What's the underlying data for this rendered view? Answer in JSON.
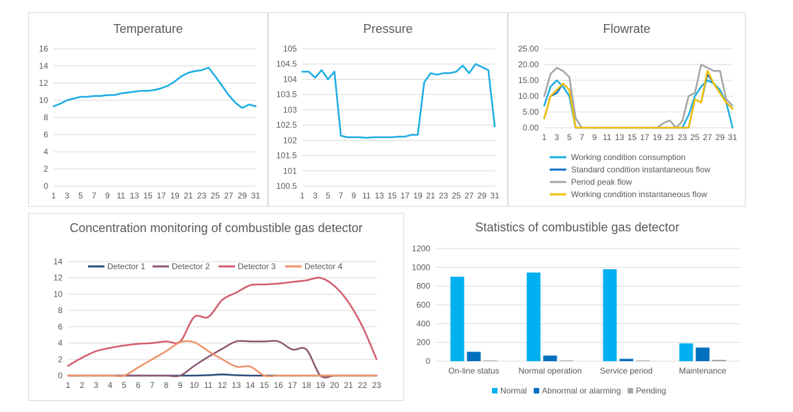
{
  "colors": {
    "blue": "#1cade4",
    "darkblue": "#0f6fc6",
    "gray": "#a5a5a5",
    "yellow": "#f4c000",
    "det1": "#2c4f7a",
    "det2": "#8e5875",
    "det3": "#d25d6e",
    "det4": "#ee9368",
    "barNormal": "#00b0f0",
    "barAbnormal": "#0070c0",
    "barPending": "#a6a6a6"
  },
  "chart_data": [
    {
      "type": "line",
      "title": "Temperature",
      "x": [
        1,
        2,
        3,
        4,
        5,
        6,
        7,
        8,
        9,
        10,
        11,
        12,
        13,
        14,
        15,
        16,
        17,
        18,
        19,
        20,
        21,
        22,
        23,
        24,
        25,
        26,
        27,
        28,
        29,
        30,
        31
      ],
      "x_tick_labels": [
        "1",
        "3",
        "5",
        "7",
        "9",
        "11",
        "13",
        "15",
        "17",
        "19",
        "21",
        "23",
        "25",
        "27",
        "29",
        "31"
      ],
      "ylim": [
        0,
        16
      ],
      "y_ticks": [
        "0",
        "2",
        "4",
        "6",
        "8",
        "10",
        "12",
        "14",
        "16"
      ],
      "series": [
        {
          "values": [
            9.3,
            9.6,
            10.0,
            10.2,
            10.4,
            10.4,
            10.5,
            10.5,
            10.6,
            10.6,
            10.8,
            10.9,
            11.0,
            11.1,
            11.1,
            11.2,
            11.4,
            11.7,
            12.2,
            12.8,
            13.2,
            13.4,
            13.5,
            13.8,
            12.8,
            11.7,
            10.6,
            9.7,
            9.1,
            9.5,
            9.3
          ]
        }
      ]
    },
    {
      "type": "line",
      "title": "Pressure",
      "x": [
        1,
        2,
        3,
        4,
        5,
        6,
        7,
        8,
        9,
        10,
        11,
        12,
        13,
        14,
        15,
        16,
        17,
        18,
        19,
        20,
        21,
        22,
        23,
        24,
        25,
        26,
        27,
        28,
        29,
        30,
        31
      ],
      "x_tick_labels": [
        "1",
        "3",
        "5",
        "7",
        "9",
        "11",
        "13",
        "15",
        "17",
        "19",
        "21",
        "23",
        "25",
        "27",
        "29",
        "31"
      ],
      "ylim": [
        100.5,
        105
      ],
      "y_ticks": [
        "100.5",
        "101",
        "101.5",
        "102",
        "102.5",
        "103",
        "103.5",
        "104",
        "104.5",
        "105"
      ],
      "series": [
        {
          "values": [
            104.25,
            104.25,
            104.05,
            104.3,
            104.0,
            104.25,
            102.15,
            102.1,
            102.1,
            102.1,
            102.08,
            102.1,
            102.1,
            102.1,
            102.1,
            102.12,
            102.12,
            102.18,
            102.18,
            103.9,
            104.2,
            104.15,
            104.2,
            104.2,
            104.25,
            104.45,
            104.2,
            104.5,
            104.4,
            104.3,
            102.45
          ]
        }
      ]
    },
    {
      "type": "line",
      "title": "Flowrate",
      "x": [
        1,
        2,
        3,
        4,
        5,
        6,
        7,
        8,
        9,
        10,
        11,
        12,
        13,
        14,
        15,
        16,
        17,
        18,
        19,
        20,
        21,
        22,
        23,
        24,
        25,
        26,
        27,
        28,
        29,
        30,
        31
      ],
      "x_tick_labels": [
        "1",
        "3",
        "5",
        "7",
        "9",
        "11",
        "13",
        "15",
        "17",
        "19",
        "21",
        "23",
        "25",
        "27",
        "29",
        "31"
      ],
      "ylim": [
        0,
        25
      ],
      "y_ticks": [
        "0.00",
        "5.00",
        "10.00",
        "15.00",
        "20.00",
        "25.00"
      ],
      "series": [
        {
          "name": "Working condition consumption",
          "values": [
            7,
            13,
            15,
            13,
            10,
            0,
            0,
            0,
            0,
            0,
            0,
            0,
            0,
            0,
            0,
            0,
            0,
            0,
            0,
            0,
            0,
            0,
            0,
            4,
            10,
            13,
            15,
            14,
            12,
            8,
            0
          ]
        },
        {
          "name": "Standard condition instantaneous flow",
          "values": [
            3,
            10,
            11,
            14,
            12,
            0,
            0,
            0,
            0,
            0,
            0,
            0,
            0,
            0,
            0,
            0,
            0,
            0,
            0,
            0,
            0,
            0,
            0,
            0,
            9,
            8,
            17,
            14,
            11,
            8,
            6
          ]
        },
        {
          "name": "Period peak flow",
          "values": [
            10,
            17,
            19,
            18,
            16,
            3,
            0,
            0,
            0,
            0,
            0,
            0,
            0,
            0,
            0,
            0,
            0,
            0,
            0,
            1.5,
            2.3,
            0,
            2,
            10,
            11,
            20,
            19,
            18,
            18,
            9,
            7
          ]
        },
        {
          "name": "Working condition instantaneous flow",
          "values": [
            3,
            10,
            12,
            14,
            12,
            0,
            0,
            0,
            0,
            0,
            0,
            0,
            0,
            0,
            0,
            0,
            0,
            0,
            0,
            0,
            0,
            0,
            0,
            0,
            9,
            8,
            18,
            14,
            11,
            8,
            6
          ]
        }
      ]
    },
    {
      "type": "line",
      "title": "Concentration monitoring of combustible gas detector",
      "x": [
        1,
        2,
        3,
        4,
        5,
        6,
        7,
        8,
        9,
        10,
        11,
        12,
        13,
        14,
        15,
        16,
        17,
        18,
        19,
        20,
        21,
        22,
        23
      ],
      "x_tick_labels": [
        "1",
        "2",
        "3",
        "4",
        "5",
        "6",
        "7",
        "8",
        "9",
        "10",
        "11",
        "12",
        "13",
        "14",
        "15",
        "16",
        "17",
        "18",
        "19",
        "20",
        "21",
        "22",
        "23"
      ],
      "ylim": [
        0,
        14
      ],
      "y_ticks": [
        "0",
        "2",
        "4",
        "6",
        "8",
        "10",
        "12",
        "14"
      ],
      "legend_position": "top",
      "series": [
        {
          "name": "Detector 1",
          "values": [
            0,
            0,
            0,
            0,
            0,
            0,
            0,
            0,
            0,
            0,
            0.05,
            0.15,
            0.05,
            0,
            0,
            0,
            0,
            0,
            0,
            0,
            0,
            0,
            0
          ]
        },
        {
          "name": "Detector 2",
          "values": [
            0,
            0,
            0,
            0,
            0,
            0,
            0,
            0,
            0,
            1.2,
            2.3,
            3.3,
            4.2,
            4.2,
            4.2,
            4.2,
            3.2,
            3.2,
            0,
            0,
            0,
            0,
            0
          ]
        },
        {
          "name": "Detector 3",
          "values": [
            1.2,
            2.2,
            3.0,
            3.4,
            3.7,
            3.9,
            4.0,
            4.2,
            4.2,
            7.2,
            7.2,
            9.3,
            10.2,
            11.1,
            11.2,
            11.3,
            11.5,
            11.7,
            12.0,
            11.0,
            9.0,
            6.0,
            2.0
          ]
        },
        {
          "name": "Detector 4",
          "values": [
            0,
            0,
            0,
            0,
            0,
            1.0,
            2.0,
            3.0,
            4.1,
            4.1,
            3.0,
            2.0,
            1.1,
            1.1,
            0,
            0,
            0,
            0,
            0,
            0,
            0,
            0,
            0
          ]
        }
      ]
    },
    {
      "type": "bar",
      "title": "Statistics of combustible gas detector",
      "categories": [
        "On-line status",
        "Normal operation",
        "Service period",
        "Maintenance"
      ],
      "ylim": [
        0,
        1200
      ],
      "y_ticks": [
        "0",
        "200",
        "400",
        "600",
        "800",
        "1000",
        "1200"
      ],
      "legend_position": "bottom",
      "series": [
        {
          "name": "Normal",
          "values": [
            900,
            945,
            980,
            190
          ]
        },
        {
          "name": "Abnormal or alarming",
          "values": [
            100,
            60,
            25,
            145
          ]
        },
        {
          "name": "Pending",
          "values": [
            8,
            8,
            8,
            15
          ]
        }
      ]
    }
  ]
}
